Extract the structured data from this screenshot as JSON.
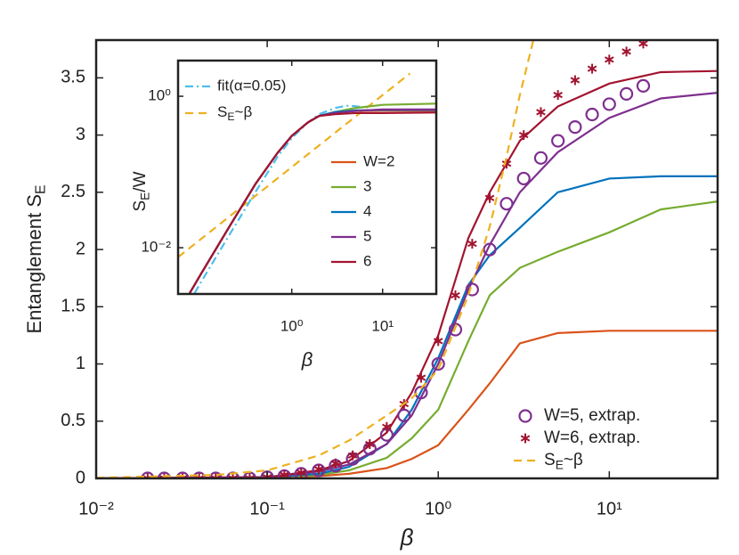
{
  "chart_data": [
    {
      "type": "line",
      "xlabel": "β",
      "ylabel": {
        "base": "Entanglement S",
        "sub": "E"
      },
      "xscale": "log",
      "xlim": [
        0.01,
        43
      ],
      "ylim": [
        0,
        3.83
      ],
      "xticks": [
        {
          "value": 0.01,
          "label": "10⁻²"
        },
        {
          "value": 0.1,
          "label": "10⁻¹"
        },
        {
          "value": 1,
          "label": "10⁰"
        },
        {
          "value": 10,
          "label": "10¹"
        }
      ],
      "yticks": [
        0,
        0.5,
        1,
        1.5,
        2,
        2.5,
        3,
        3.5
      ],
      "series": [
        {
          "color": "#d95319",
          "style": "line",
          "x": [
            0.01,
            0.1,
            0.2,
            0.3,
            0.5,
            0.7,
            1,
            1.5,
            2,
            3,
            5,
            10,
            20,
            43
          ],
          "values": [
            0,
            0.005,
            0.02,
            0.04,
            0.09,
            0.17,
            0.29,
            0.6,
            0.83,
            1.18,
            1.27,
            1.29,
            1.29,
            1.29
          ]
        },
        {
          "color": "#77ac30",
          "style": "line",
          "x": [
            0.01,
            0.1,
            0.2,
            0.3,
            0.5,
            0.7,
            1,
            1.5,
            2,
            3,
            5,
            10,
            20,
            43
          ],
          "values": [
            0,
            0.008,
            0.03,
            0.07,
            0.18,
            0.35,
            0.6,
            1.2,
            1.6,
            1.84,
            1.98,
            2.15,
            2.35,
            2.42
          ]
        },
        {
          "color": "#0072bd",
          "style": "line",
          "x": [
            0.01,
            0.1,
            0.2,
            0.3,
            0.5,
            0.7,
            1,
            1.5,
            2,
            3,
            5,
            10,
            20,
            43
          ],
          "values": [
            0,
            0.01,
            0.04,
            0.1,
            0.3,
            0.6,
            1.05,
            1.69,
            1.95,
            2.19,
            2.5,
            2.62,
            2.64,
            2.64
          ]
        },
        {
          "color": "#7e2f8e",
          "style": "line",
          "x": [
            0.01,
            0.1,
            0.2,
            0.3,
            0.5,
            0.7,
            1,
            1.5,
            2,
            3,
            5,
            10,
            20,
            43
          ],
          "values": [
            0,
            0.01,
            0.06,
            0.12,
            0.3,
            0.55,
            1.0,
            1.65,
            2.04,
            2.5,
            2.85,
            3.15,
            3.32,
            3.37
          ]
        },
        {
          "color": "#a2142f",
          "style": "line",
          "x": [
            0.01,
            0.1,
            0.2,
            0.3,
            0.5,
            0.7,
            1,
            1.5,
            2,
            3,
            5,
            10,
            20,
            43
          ],
          "values": [
            0,
            0.01,
            0.07,
            0.15,
            0.4,
            0.75,
            1.25,
            2.1,
            2.5,
            2.95,
            3.25,
            3.45,
            3.55,
            3.56
          ]
        },
        {
          "name": "W=5, extrap.",
          "color": "#7e2f8e",
          "style": "circle",
          "x": [
            0.02,
            0.025,
            0.032,
            0.04,
            0.05,
            0.063,
            0.079,
            0.1,
            0.126,
            0.158,
            0.2,
            0.251,
            0.316,
            0.398,
            0.5,
            0.631,
            0.794,
            1,
            1.26,
            1.58,
            2,
            2.51,
            3.16,
            3.98,
            5.01,
            6.31,
            7.94,
            10,
            12.6,
            15.8
          ],
          "values": [
            0,
            0,
            0,
            0,
            0,
            0,
            0,
            0.01,
            0.02,
            0.04,
            0.07,
            0.11,
            0.17,
            0.26,
            0.38,
            0.55,
            0.75,
            1.0,
            1.3,
            1.65,
            2.0,
            2.4,
            2.62,
            2.8,
            2.95,
            3.07,
            3.18,
            3.27,
            3.36,
            3.43
          ]
        },
        {
          "name": "W=6, extrap.",
          "color": "#a2142f",
          "style": "asterisk",
          "x": [
            0.02,
            0.025,
            0.032,
            0.04,
            0.05,
            0.063,
            0.079,
            0.1,
            0.126,
            0.158,
            0.2,
            0.251,
            0.316,
            0.398,
            0.5,
            0.631,
            0.794,
            1,
            1.26,
            1.58,
            2,
            2.51,
            3.16,
            3.98,
            5.01,
            6.31,
            7.94,
            10,
            12.6,
            15.8
          ],
          "values": [
            0,
            0,
            0,
            0,
            0,
            0,
            0,
            0.01,
            0.03,
            0.05,
            0.08,
            0.13,
            0.2,
            0.3,
            0.45,
            0.65,
            0.88,
            1.2,
            1.6,
            2.05,
            2.45,
            2.75,
            3.0,
            3.2,
            3.35,
            3.48,
            3.58,
            3.66,
            3.73,
            3.8
          ]
        },
        {
          "name": {
            "base": "S",
            "sub": "E",
            "rest": "~β"
          },
          "color": "#edb120",
          "style": "dashed",
          "x": [
            0.01,
            0.05,
            0.1,
            0.2,
            0.3,
            0.5,
            0.7,
            1,
            1.5,
            2,
            2.5,
            3,
            3.6
          ],
          "values": [
            0.005,
            0.03,
            0.07,
            0.2,
            0.33,
            0.55,
            0.7,
            0.95,
            1.6,
            2.2,
            2.8,
            3.35,
            3.83
          ]
        }
      ]
    },
    {
      "type": "line",
      "xlabel": "β",
      "ylabel": {
        "base": "S",
        "sub": "E",
        "rest": "/W"
      },
      "xscale": "log",
      "yscale": "log",
      "xlim": [
        0.056,
        39
      ],
      "ylim": [
        0.00245,
        2.96
      ],
      "xticks": [
        {
          "value": 1,
          "label": "10⁰"
        },
        {
          "value": 10,
          "label": "10¹"
        }
      ],
      "yticks": [
        {
          "value": 0.01,
          "label": "10⁻²"
        },
        {
          "value": 1,
          "label": "10⁰"
        }
      ],
      "series": [
        {
          "name": "fit(α=0.05)",
          "color": "#4dbeee",
          "style": "dashdot",
          "x": [
            0.085,
            0.1,
            0.2,
            0.4,
            0.7,
            1,
            1.5,
            2,
            3,
            4,
            5,
            6
          ],
          "values": [
            0.0025,
            0.0035,
            0.014,
            0.055,
            0.16,
            0.28,
            0.45,
            0.58,
            0.7,
            0.75,
            0.74,
            0.72
          ]
        },
        {
          "name": {
            "base": "S",
            "sub": "E",
            "rest": "~β"
          },
          "color": "#edb120",
          "style": "dashed",
          "x": [
            0.056,
            20
          ],
          "values": [
            0.0075,
            2.0
          ]
        },
        {
          "name": "W=2",
          "color": "#d95319",
          "style": "line",
          "x": [
            0.075,
            0.1,
            0.2,
            0.4,
            0.7,
            1,
            1.5,
            2,
            3,
            5,
            10,
            39
          ],
          "values": [
            0.0025,
            0.0045,
            0.018,
            0.07,
            0.18,
            0.3,
            0.45,
            0.55,
            0.62,
            0.64,
            0.645,
            0.645
          ]
        },
        {
          "name": "3",
          "color": "#77ac30",
          "style": "line",
          "x": [
            0.075,
            0.1,
            0.2,
            0.4,
            0.7,
            1,
            1.5,
            2,
            3,
            5,
            10,
            39
          ],
          "values": [
            0.0025,
            0.0045,
            0.018,
            0.07,
            0.18,
            0.3,
            0.45,
            0.55,
            0.62,
            0.7,
            0.77,
            0.8
          ]
        },
        {
          "name": "4",
          "color": "#0072bd",
          "style": "line",
          "x": [
            0.075,
            0.1,
            0.2,
            0.4,
            0.7,
            1,
            1.5,
            2,
            3,
            5,
            10,
            39
          ],
          "values": [
            0.0025,
            0.0045,
            0.018,
            0.07,
            0.18,
            0.3,
            0.45,
            0.55,
            0.62,
            0.65,
            0.66,
            0.66
          ]
        },
        {
          "name": "5",
          "color": "#7e2f8e",
          "style": "line",
          "x": [
            0.075,
            0.1,
            0.2,
            0.4,
            0.7,
            1,
            1.5,
            2,
            3,
            5,
            10,
            39
          ],
          "values": [
            0.0025,
            0.0045,
            0.018,
            0.07,
            0.18,
            0.3,
            0.45,
            0.55,
            0.6,
            0.64,
            0.67,
            0.67
          ]
        },
        {
          "name": "6",
          "color": "#a2142f",
          "style": "line",
          "x": [
            0.075,
            0.1,
            0.2,
            0.4,
            0.7,
            1,
            1.5,
            2,
            3,
            5,
            10,
            39
          ],
          "values": [
            0.0025,
            0.0045,
            0.018,
            0.07,
            0.18,
            0.3,
            0.45,
            0.55,
            0.58,
            0.6,
            0.6,
            0.61
          ]
        }
      ]
    }
  ]
}
